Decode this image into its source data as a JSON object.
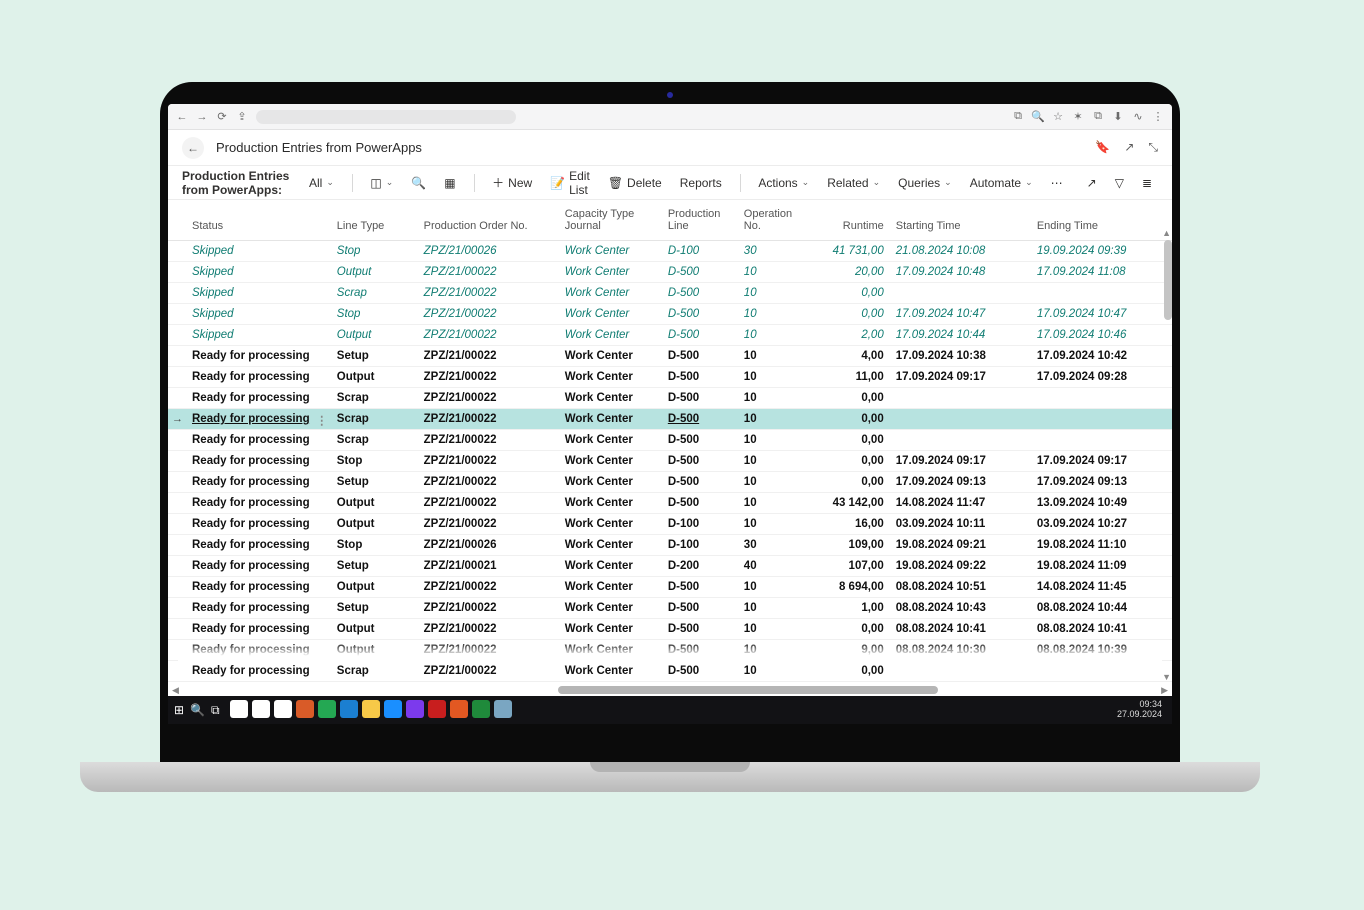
{
  "browser": {
    "icons_left": [
      "←",
      "→",
      "⟳",
      "⇪"
    ],
    "icons_right": [
      "⧉",
      "🔍",
      "☆",
      "✶",
      "⧉",
      "⬇",
      "∿",
      "⋮"
    ]
  },
  "header": {
    "title": "Production Entries from PowerApps",
    "right_icons": [
      "🔖",
      "↗",
      "⤡"
    ]
  },
  "toolbar": {
    "label": "Production Entries from PowerApps:",
    "filter": "All",
    "new": "New",
    "edit_list": "Edit List",
    "delete": "Delete",
    "reports": "Reports",
    "actions": "Actions",
    "related": "Related",
    "queries": "Queries",
    "automate": "Automate",
    "more": "⋯",
    "share": "↗",
    "filter_icon": "▽",
    "list_icon": "≣"
  },
  "columns": {
    "status": "Status",
    "line_type": "Line Type",
    "prod_order": "Production Order No.",
    "cap_type": "Capacity Type\nJournal",
    "prod_line": "Production\nLine",
    "op_no": "Operation\nNo.",
    "runtime": "Runtime",
    "start": "Starting Time",
    "end": "Ending Time"
  },
  "rows": [
    {
      "cls": "skipped",
      "status": "Skipped",
      "lt": "Stop",
      "po": "ZPZ/21/00026",
      "ct": "Work Center",
      "pl": "D-100",
      "op": "30",
      "rt": "41 731,00",
      "st": "21.08.2024 10:08",
      "et": "19.09.2024 09:39"
    },
    {
      "cls": "skipped",
      "status": "Skipped",
      "lt": "Output",
      "po": "ZPZ/21/00022",
      "ct": "Work Center",
      "pl": "D-500",
      "op": "10",
      "rt": "20,00",
      "st": "17.09.2024 10:48",
      "et": "17.09.2024 11:08"
    },
    {
      "cls": "skipped",
      "status": "Skipped",
      "lt": "Scrap",
      "po": "ZPZ/21/00022",
      "ct": "Work Center",
      "pl": "D-500",
      "op": "10",
      "rt": "0,00",
      "st": "",
      "et": ""
    },
    {
      "cls": "skipped",
      "status": "Skipped",
      "lt": "Stop",
      "po": "ZPZ/21/00022",
      "ct": "Work Center",
      "pl": "D-500",
      "op": "10",
      "rt": "0,00",
      "st": "17.09.2024 10:47",
      "et": "17.09.2024 10:47"
    },
    {
      "cls": "skipped",
      "status": "Skipped",
      "lt": "Output",
      "po": "ZPZ/21/00022",
      "ct": "Work Center",
      "pl": "D-500",
      "op": "10",
      "rt": "2,00",
      "st": "17.09.2024 10:44",
      "et": "17.09.2024 10:46"
    },
    {
      "cls": "ready",
      "status": "Ready for processing",
      "lt": "Setup",
      "po": "ZPZ/21/00022",
      "ct": "Work Center",
      "pl": "D-500",
      "op": "10",
      "rt": "4,00",
      "st": "17.09.2024 10:38",
      "et": "17.09.2024 10:42"
    },
    {
      "cls": "ready",
      "status": "Ready for processing",
      "lt": "Output",
      "po": "ZPZ/21/00022",
      "ct": "Work Center",
      "pl": "D-500",
      "op": "10",
      "rt": "11,00",
      "st": "17.09.2024 09:17",
      "et": "17.09.2024 09:28"
    },
    {
      "cls": "ready",
      "status": "Ready for processing",
      "lt": "Scrap",
      "po": "ZPZ/21/00022",
      "ct": "Work Center",
      "pl": "D-500",
      "op": "10",
      "rt": "0,00",
      "st": "",
      "et": ""
    },
    {
      "cls": "ready selected",
      "status": "Ready for processing",
      "lt": "Scrap",
      "po": "ZPZ/21/00022",
      "ct": "Work Center",
      "pl": "D-500",
      "op": "10",
      "rt": "0,00",
      "st": "",
      "et": ""
    },
    {
      "cls": "ready",
      "status": "Ready for processing",
      "lt": "Scrap",
      "po": "ZPZ/21/00022",
      "ct": "Work Center",
      "pl": "D-500",
      "op": "10",
      "rt": "0,00",
      "st": "",
      "et": ""
    },
    {
      "cls": "ready",
      "status": "Ready for processing",
      "lt": "Stop",
      "po": "ZPZ/21/00022",
      "ct": "Work Center",
      "pl": "D-500",
      "op": "10",
      "rt": "0,00",
      "st": "17.09.2024 09:17",
      "et": "17.09.2024 09:17"
    },
    {
      "cls": "ready",
      "status": "Ready for processing",
      "lt": "Setup",
      "po": "ZPZ/21/00022",
      "ct": "Work Center",
      "pl": "D-500",
      "op": "10",
      "rt": "0,00",
      "st": "17.09.2024 09:13",
      "et": "17.09.2024 09:13"
    },
    {
      "cls": "ready",
      "status": "Ready for processing",
      "lt": "Output",
      "po": "ZPZ/21/00022",
      "ct": "Work Center",
      "pl": "D-500",
      "op": "10",
      "rt": "43 142,00",
      "st": "14.08.2024 11:47",
      "et": "13.09.2024 10:49"
    },
    {
      "cls": "ready",
      "status": "Ready for processing",
      "lt": "Output",
      "po": "ZPZ/21/00022",
      "ct": "Work Center",
      "pl": "D-100",
      "op": "10",
      "rt": "16,00",
      "st": "03.09.2024 10:11",
      "et": "03.09.2024 10:27"
    },
    {
      "cls": "ready",
      "status": "Ready for processing",
      "lt": "Stop",
      "po": "ZPZ/21/00026",
      "ct": "Work Center",
      "pl": "D-100",
      "op": "30",
      "rt": "109,00",
      "st": "19.08.2024 09:21",
      "et": "19.08.2024 11:10"
    },
    {
      "cls": "ready",
      "status": "Ready for processing",
      "lt": "Setup",
      "po": "ZPZ/21/00021",
      "ct": "Work Center",
      "pl": "D-200",
      "op": "40",
      "rt": "107,00",
      "st": "19.08.2024 09:22",
      "et": "19.08.2024 11:09"
    },
    {
      "cls": "ready",
      "status": "Ready for processing",
      "lt": "Output",
      "po": "ZPZ/21/00022",
      "ct": "Work Center",
      "pl": "D-500",
      "op": "10",
      "rt": "8 694,00",
      "st": "08.08.2024 10:51",
      "et": "14.08.2024 11:45"
    },
    {
      "cls": "ready",
      "status": "Ready for processing",
      "lt": "Setup",
      "po": "ZPZ/21/00022",
      "ct": "Work Center",
      "pl": "D-500",
      "op": "10",
      "rt": "1,00",
      "st": "08.08.2024 10:43",
      "et": "08.08.2024 10:44"
    },
    {
      "cls": "ready",
      "status": "Ready for processing",
      "lt": "Output",
      "po": "ZPZ/21/00022",
      "ct": "Work Center",
      "pl": "D-500",
      "op": "10",
      "rt": "0,00",
      "st": "08.08.2024 10:41",
      "et": "08.08.2024 10:41"
    },
    {
      "cls": "ready",
      "status": "Ready for processing",
      "lt": "Output",
      "po": "ZPZ/21/00022",
      "ct": "Work Center",
      "pl": "D-500",
      "op": "10",
      "rt": "9,00",
      "st": "08.08.2024 10:30",
      "et": "08.08.2024 10:39"
    },
    {
      "cls": "ready",
      "status": "Ready for processing",
      "lt": "Scrap",
      "po": "ZPZ/21/00022",
      "ct": "Work Center",
      "pl": "D-500",
      "op": "10",
      "rt": "0,00",
      "st": "",
      "et": ""
    }
  ],
  "taskbar": {
    "colors": [
      "#ffffff",
      "#ffffff",
      "#ffffff",
      "#d95b28",
      "#24a853",
      "#1b7fd1",
      "#f7c948",
      "#1a8fff",
      "#7c3aed",
      "#c81e1e",
      "#e25822",
      "#1f8a3b",
      "#7aa6c2"
    ],
    "time": "09:34",
    "date": "27.09.2024"
  },
  "colors": {
    "page_bg": "#dff2ea",
    "selected_row": "#b7e3e0",
    "skipped_text": "#0f7c72"
  }
}
